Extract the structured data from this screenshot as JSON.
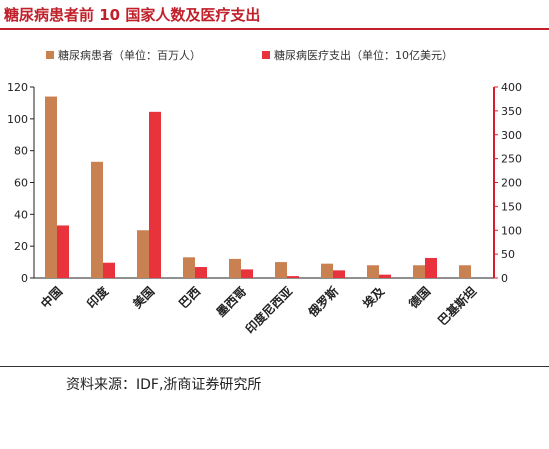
{
  "title": "糖尿病患者前 10 国家人数及医疗支出",
  "source": "资料来源：IDF,浙商证券研究所",
  "chart_data": {
    "type": "bar",
    "categories": [
      "中国",
      "印度",
      "美国",
      "巴西",
      "墨西哥",
      "印度尼西亚",
      "俄罗斯",
      "埃及",
      "德国",
      "巴基斯坦"
    ],
    "series": [
      {
        "name": "糖尿病患者（单位：百万人）",
        "axis": "left",
        "color": "#c98152",
        "values": [
          114,
          73,
          30,
          13,
          12,
          10,
          9,
          8,
          8,
          8
        ]
      },
      {
        "name": "糖尿病医疗支出（单位：10亿美元）",
        "axis": "right",
        "color": "#e8323c",
        "values": [
          110,
          32,
          348,
          23,
          18,
          4,
          16,
          7,
          42,
          0
        ]
      }
    ],
    "yleft": {
      "min": 0,
      "max": 120,
      "ticks": [
        0,
        20,
        40,
        60,
        80,
        100,
        120
      ]
    },
    "yright": {
      "min": 0,
      "max": 400,
      "ticks": [
        0,
        50,
        100,
        150,
        200,
        250,
        300,
        350,
        400
      ],
      "color": "#d81e2a"
    },
    "legend": "top",
    "grid": false
  }
}
